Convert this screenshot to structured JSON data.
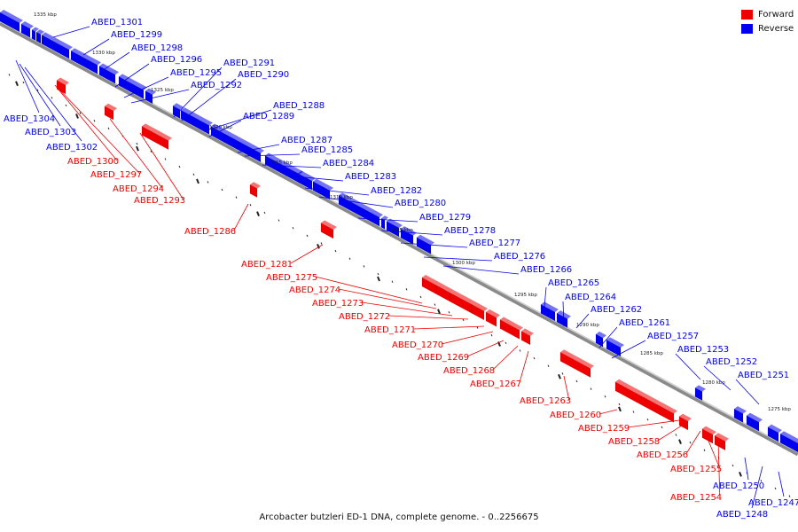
{
  "caption": "Arcobacter butzleri ED-1 DNA, complete genome. - 0..2256675",
  "legend": [
    {
      "label": "Forward",
      "color": "#ee0000"
    },
    {
      "label": "Reverse",
      "color": "#0000ee"
    }
  ],
  "colors": {
    "forward": "#ee0000",
    "reverse": "#0000ee",
    "axis": "#8a8a8a",
    "marker": "#222222"
  },
  "scale_labels": [
    "1335 kbp",
    "1330 kbp",
    "1325 kbp",
    "1320 kbp",
    "1315 kbp",
    "1310 kbp",
    "1305 kbp",
    "1300 kbp",
    "1295 kbp",
    "1290 kbp",
    "1285 kbp",
    "1280 kbp",
    "1275 kbp"
  ],
  "genes_reverse": [
    "ABED_1301",
    "ABED_1299",
    "ABED_1298",
    "ABED_1296",
    "ABED_1295",
    "ABED_1292",
    "ABED_1291",
    "ABED_1290",
    "ABED_1288",
    "ABED_1289",
    "ABED_1287",
    "ABED_1285",
    "ABED_1284",
    "ABED_1283",
    "ABED_1282",
    "ABED_1280",
    "ABED_1279",
    "ABED_1278",
    "ABED_1277",
    "ABED_1276",
    "ABED_1266",
    "ABED_1265",
    "ABED_1264",
    "ABED_1262",
    "ABED_1261",
    "ABED_1257",
    "ABED_1253",
    "ABED_1252",
    "ABED_1251",
    "ABED_1304",
    "ABED_1303",
    "ABED_1302",
    "ABED_1250",
    "ABED_1247",
    "ABED_1248"
  ],
  "genes_forward": [
    "ABED_1300",
    "ABED_1297",
    "ABED_1294",
    "ABED_1293",
    "ABED_1286",
    "ABED_1281",
    "ABED_1275",
    "ABED_1274",
    "ABED_1273",
    "ABED_1272",
    "ABED_1271",
    "ABED_1270",
    "ABED_1269",
    "ABED_1268",
    "ABED_1267",
    "ABED_1263",
    "ABED_1260",
    "ABED_1259",
    "ABED_1258",
    "ABED_1256",
    "ABED_1255",
    "ABED_1254"
  ]
}
